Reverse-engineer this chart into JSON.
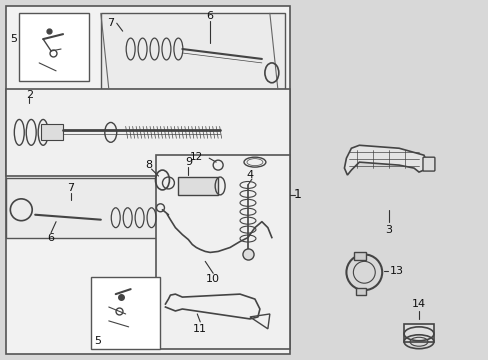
{
  "bg_color": "#d8d8d8",
  "main_bg": "#f2f2f2",
  "part_color": "#444444",
  "label_color": "#111111",
  "line_color": "#333333",
  "figsize": [
    4.89,
    3.6
  ],
  "dpi": 100
}
